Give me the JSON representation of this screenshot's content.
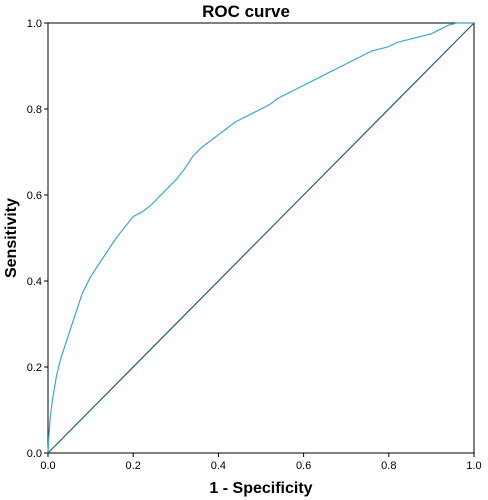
{
  "chart_data": {
    "type": "line",
    "title": "ROC curve",
    "xlabel": "1 - Specificity",
    "ylabel": "Sensitivity",
    "xlim": [
      0.0,
      1.0
    ],
    "ylim": [
      0.0,
      1.0
    ],
    "x_ticks": [
      "0.0",
      "0.2",
      "0.4",
      "0.6",
      "0.8",
      "1.0"
    ],
    "y_ticks": [
      "0.0",
      "0.2",
      "0.4",
      "0.6",
      "0.8",
      "1.0"
    ],
    "grid": false,
    "legend": "none",
    "series": [
      {
        "color": "#3ba7d6",
        "x": [
          0.0,
          0.002,
          0.005,
          0.01,
          0.015,
          0.02,
          0.03,
          0.04,
          0.05,
          0.06,
          0.07,
          0.08,
          0.09,
          0.1,
          0.12,
          0.14,
          0.16,
          0.18,
          0.2,
          0.22,
          0.24,
          0.26,
          0.28,
          0.3,
          0.32,
          0.34,
          0.36,
          0.38,
          0.4,
          0.42,
          0.44,
          0.46,
          0.48,
          0.5,
          0.52,
          0.54,
          0.56,
          0.58,
          0.6,
          0.62,
          0.64,
          0.66,
          0.68,
          0.7,
          0.72,
          0.74,
          0.76,
          0.78,
          0.8,
          0.82,
          0.84,
          0.86,
          0.88,
          0.9,
          0.92,
          0.94,
          0.96,
          0.98,
          1.0
        ],
        "y": [
          0.0,
          0.04,
          0.08,
          0.12,
          0.15,
          0.18,
          0.22,
          0.25,
          0.28,
          0.31,
          0.34,
          0.37,
          0.39,
          0.41,
          0.44,
          0.47,
          0.5,
          0.525,
          0.55,
          0.56,
          0.575,
          0.595,
          0.615,
          0.635,
          0.66,
          0.69,
          0.71,
          0.725,
          0.74,
          0.755,
          0.77,
          0.78,
          0.79,
          0.8,
          0.81,
          0.825,
          0.835,
          0.845,
          0.855,
          0.865,
          0.875,
          0.885,
          0.895,
          0.905,
          0.915,
          0.925,
          0.935,
          0.94,
          0.945,
          0.955,
          0.96,
          0.965,
          0.97,
          0.975,
          0.985,
          0.995,
          1.0,
          1.0,
          1.0
        ]
      },
      {
        "color": "#1f5f78",
        "x": [
          0.0,
          1.0
        ],
        "y": [
          0.0,
          1.0
        ]
      }
    ]
  }
}
